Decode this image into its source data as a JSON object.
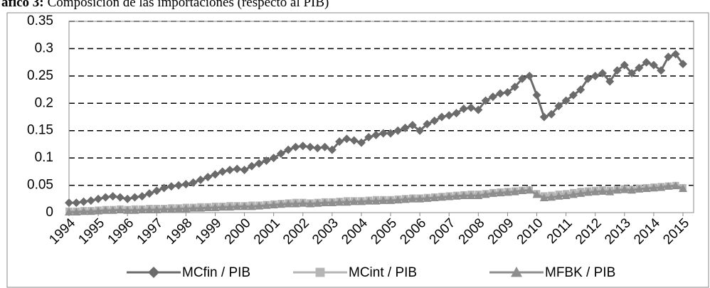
{
  "chart_data": {
    "type": "line",
    "title_label": "áfico 3:",
    "title": "Composición de las importaciones (respecto al PIB)",
    "categories": [
      "1994",
      null,
      null,
      null,
      "1995",
      null,
      null,
      null,
      "1996",
      null,
      null,
      null,
      "1997",
      null,
      null,
      null,
      "1998",
      null,
      null,
      null,
      "1999",
      null,
      null,
      null,
      "2000",
      null,
      null,
      null,
      "2001",
      null,
      null,
      null,
      "2002",
      null,
      null,
      null,
      "2003",
      null,
      null,
      null,
      "2004",
      null,
      null,
      null,
      "2005",
      null,
      null,
      null,
      "2006",
      null,
      null,
      null,
      "2007",
      null,
      null,
      null,
      "2008",
      null,
      null,
      null,
      "2009",
      null,
      null,
      null,
      "2010",
      null,
      null,
      null,
      "2011",
      null,
      null,
      null,
      "2012",
      null,
      null,
      null,
      "2013",
      null,
      null,
      null,
      "2014",
      null,
      null,
      null,
      "2015"
    ],
    "series": [
      {
        "name": "MCfin / PIB",
        "color": "#6b6b6b",
        "marker": "diamond",
        "values": [
          0.018,
          0.018,
          0.02,
          0.022,
          0.025,
          0.028,
          0.03,
          0.028,
          0.025,
          0.028,
          0.03,
          0.035,
          0.04,
          0.045,
          0.048,
          0.05,
          0.052,
          0.055,
          0.06,
          0.065,
          0.07,
          0.075,
          0.078,
          0.08,
          0.078,
          0.085,
          0.09,
          0.095,
          0.1,
          0.108,
          0.115,
          0.12,
          0.122,
          0.12,
          0.118,
          0.12,
          0.115,
          0.13,
          0.135,
          0.132,
          0.128,
          0.138,
          0.142,
          0.145,
          0.145,
          0.15,
          0.155,
          0.16,
          0.15,
          0.162,
          0.168,
          0.175,
          0.178,
          0.182,
          0.19,
          0.192,
          0.188,
          0.205,
          0.212,
          0.218,
          0.22,
          0.23,
          0.245,
          0.25,
          0.215,
          0.175,
          0.18,
          0.195,
          0.205,
          0.215,
          0.225,
          0.245,
          0.25,
          0.255,
          0.24,
          0.26,
          0.27,
          0.255,
          0.265,
          0.275,
          0.27,
          0.26,
          0.285,
          0.29,
          0.272
        ]
      },
      {
        "name": "MCint / PIB",
        "color": "#b5b5b5",
        "marker": "square",
        "values": [
          0.003,
          0.003,
          0.004,
          0.004,
          0.005,
          0.006,
          0.006,
          0.007,
          0.006,
          0.007,
          0.007,
          0.008,
          0.008,
          0.008,
          0.009,
          0.009,
          0.01,
          0.01,
          0.011,
          0.011,
          0.012,
          0.012,
          0.013,
          0.013,
          0.013,
          0.014,
          0.014,
          0.015,
          0.016,
          0.017,
          0.018,
          0.019,
          0.019,
          0.018,
          0.019,
          0.02,
          0.02,
          0.021,
          0.022,
          0.022,
          0.022,
          0.023,
          0.024,
          0.024,
          0.024,
          0.025,
          0.026,
          0.027,
          0.027,
          0.028,
          0.029,
          0.03,
          0.031,
          0.032,
          0.033,
          0.034,
          0.034,
          0.035,
          0.037,
          0.038,
          0.039,
          0.04,
          0.041,
          0.042,
          0.035,
          0.031,
          0.032,
          0.034,
          0.035,
          0.037,
          0.039,
          0.04,
          0.041,
          0.042,
          0.041,
          0.043,
          0.044,
          0.043,
          0.045,
          0.046,
          0.047,
          0.048,
          0.049,
          0.05,
          0.046
        ]
      },
      {
        "name": "MFBK / PIB",
        "color": "#8e8e8e",
        "marker": "triangle",
        "values": [
          0.001,
          0.001,
          0.002,
          0.002,
          0.003,
          0.004,
          0.004,
          0.005,
          0.004,
          0.004,
          0.005,
          0.005,
          0.005,
          0.006,
          0.006,
          0.007,
          0.007,
          0.008,
          0.008,
          0.009,
          0.009,
          0.01,
          0.01,
          0.011,
          0.011,
          0.011,
          0.012,
          0.013,
          0.014,
          0.015,
          0.016,
          0.016,
          0.017,
          0.016,
          0.017,
          0.018,
          0.018,
          0.019,
          0.019,
          0.02,
          0.02,
          0.021,
          0.021,
          0.022,
          0.022,
          0.023,
          0.024,
          0.025,
          0.025,
          0.026,
          0.027,
          0.028,
          0.029,
          0.03,
          0.031,
          0.031,
          0.031,
          0.033,
          0.035,
          0.036,
          0.037,
          0.038,
          0.04,
          0.041,
          0.033,
          0.027,
          0.028,
          0.03,
          0.031,
          0.033,
          0.035,
          0.037,
          0.038,
          0.039,
          0.038,
          0.041,
          0.042,
          0.041,
          0.043,
          0.044,
          0.045,
          0.046,
          0.048,
          0.049,
          0.044
        ]
      }
    ],
    "ylim": [
      0,
      0.35
    ],
    "yticks": [
      0,
      0.05,
      0.1,
      0.15,
      0.2,
      0.25,
      0.3,
      0.35
    ],
    "grid": true,
    "legend": "bottom"
  }
}
